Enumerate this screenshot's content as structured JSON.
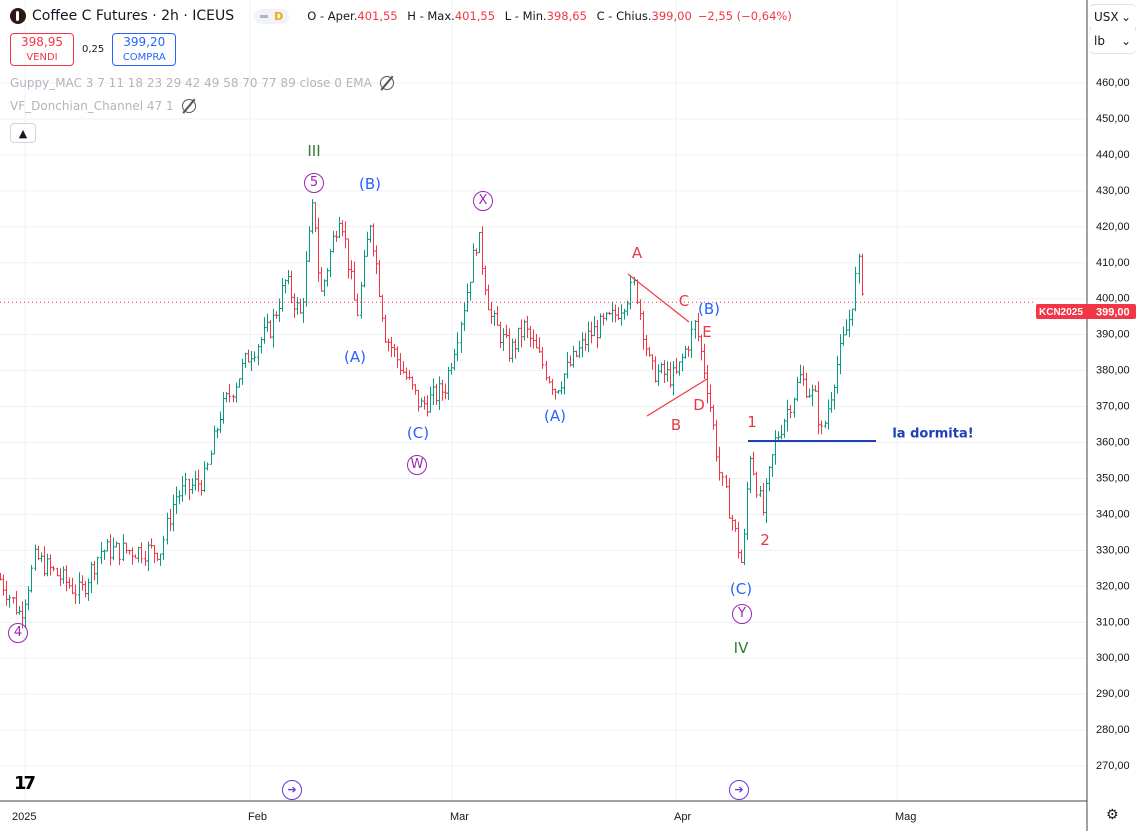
{
  "header": {
    "title": "Coffee C Futures · 2h · ICEUS",
    "mode_badge": "D",
    "open_label": "O - Aper.",
    "open": "401,55",
    "high_label": "H - Max.",
    "high": "401,55",
    "low_label": "L - Min.",
    "low": "398,65",
    "close_label": "C - Chius.",
    "close": "399,00",
    "change": "−2,55 (−0,64%)"
  },
  "trade": {
    "sell_price": "398,95",
    "sell_label": "VENDI",
    "spread": "0,25",
    "buy_price": "399,20",
    "buy_label": "COMPRA"
  },
  "indicators": [
    {
      "name": "Guppy_MAC 3 7 11 18 23 29 42 49 58 70 77 89 close 0 EMA",
      "icon": "eye-hidden-icon"
    },
    {
      "name": "VF_Donchian_Channel 47 1",
      "icon": "eye-hidden-icon"
    }
  ],
  "axis_units": {
    "currency": "USX",
    "unit": "lb"
  },
  "colors": {
    "up": "#089981",
    "down": "#f23645",
    "wave_green": "#2e7d32",
    "wave_blue": "#2962ff",
    "wave_red": "#e53946",
    "wave_purple": "#9c27b0",
    "price_line": "#f23645"
  },
  "last_price": {
    "symbol": "KCN2025",
    "value": "399,00"
  },
  "annotations": {
    "III": "III",
    "IV": "IV",
    "c5": "5",
    "c4": "4",
    "cX": "X",
    "cW": "W",
    "cY": "Y",
    "B1": "(B)",
    "A1": "(A)",
    "C1": "(C)",
    "A2": "(A)",
    "B2": "(B)",
    "C2": "(C)",
    "tA": "A",
    "tB": "B",
    "tC": "C",
    "tD": "D",
    "tE": "E",
    "w1": "1",
    "w2": "2",
    "note": "la dormita!"
  },
  "chart_data": {
    "type": "candlestick",
    "title": "Coffee C Futures · 2h · ICEUS",
    "ylabel": "USX/lb",
    "ylim": [
      262,
      468
    ],
    "y_ticks": [
      "460,00",
      "450,00",
      "440,00",
      "430,00",
      "420,00",
      "410,00",
      "400,00",
      "390,00",
      "380,00",
      "370,00",
      "360,00",
      "350,00",
      "340,00",
      "330,00",
      "320,00",
      "310,00",
      "300,00",
      "290,00",
      "280,00",
      "270,00"
    ],
    "x_ticks": [
      "2025",
      "Feb",
      "Mar",
      "Apr",
      "Mag"
    ],
    "grid": true,
    "path_day_price": [
      [
        -2.4,
        322
      ],
      [
        0.3,
        312
      ],
      [
        2.3,
        328
      ],
      [
        8.3,
        318
      ],
      [
        11,
        330
      ],
      [
        19,
        330
      ],
      [
        21,
        345
      ],
      [
        25,
        350
      ],
      [
        27,
        368
      ],
      [
        31,
        385
      ],
      [
        33.8,
        392
      ],
      [
        35.9,
        405
      ],
      [
        38,
        395
      ],
      [
        39.8,
        428
      ],
      [
        40.7,
        400
      ],
      [
        43.5,
        425
      ],
      [
        45.8,
        395
      ],
      [
        47.6,
        422
      ],
      [
        49.7,
        390
      ],
      [
        54.6,
        370
      ],
      [
        58,
        375
      ],
      [
        60.8,
        400
      ],
      [
        62.5,
        418
      ],
      [
        64.3,
        395
      ],
      [
        67,
        385
      ],
      [
        69,
        392
      ],
      [
        73.2,
        375
      ],
      [
        78,
        390
      ],
      [
        81.4,
        395
      ],
      [
        84.3,
        404
      ],
      [
        86.4,
        380
      ],
      [
        89.9,
        378
      ],
      [
        92.6,
        393
      ],
      [
        94.3,
        375
      ],
      [
        96,
        350
      ],
      [
        97.4,
        340
      ],
      [
        99,
        325
      ],
      [
        100,
        358
      ],
      [
        101.7,
        340
      ],
      [
        103.4,
        360
      ],
      [
        106.8,
        378
      ],
      [
        108.9,
        372
      ],
      [
        109.8,
        362
      ],
      [
        111.6,
        380
      ],
      [
        113.6,
        395
      ],
      [
        114.7,
        410
      ],
      [
        115.6,
        399
      ]
    ],
    "horizontal_line": {
      "price": 360,
      "label": "la dormita!"
    },
    "events": [
      "event-marker",
      "event-marker"
    ]
  }
}
